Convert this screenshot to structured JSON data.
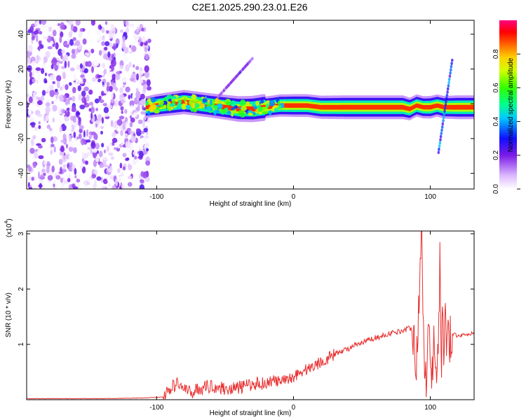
{
  "figure": {
    "title": "C2E1.2025.290.23.01.E26"
  },
  "chart_data": [
    {
      "type": "heatmap",
      "xlabel": "Height of straight line (km)",
      "ylabel": "Frequency (Hz)",
      "xlim": [
        -195,
        132
      ],
      "ylim": [
        -49,
        48
      ],
      "x_ticks": [
        -100,
        0,
        100
      ],
      "x_tick_labels": [
        "-100",
        "0",
        "100"
      ],
      "y_ticks": [
        -40,
        -20,
        0,
        20,
        40
      ],
      "y_tick_labels": [
        "-40",
        "-20",
        "0",
        "20",
        "40"
      ],
      "colorbar": {
        "label": "Normalized spectral amplitude",
        "range": [
          0,
          1
        ],
        "ticks": [
          0,
          0.2,
          0.4,
          0.6,
          0.8
        ],
        "tick_labels": [
          "0.0",
          "0.2",
          "0.4",
          "0.6",
          "0.8"
        ]
      },
      "ridge": {
        "x": [
          -108,
          -100,
          -90,
          -80,
          -70,
          -60,
          -50,
          -40,
          -30,
          -20,
          -10,
          0,
          10,
          20,
          40,
          60,
          80,
          85,
          90,
          95,
          100,
          105,
          110,
          120,
          132
        ],
        "y": [
          -2,
          -1,
          0,
          1,
          0,
          -1,
          -2,
          -3,
          -3,
          -2,
          -1,
          -1,
          -1,
          -2,
          -2,
          -2,
          -2,
          -3,
          -1,
          -2,
          -2,
          -1,
          -2,
          -2,
          -2
        ],
        "amplitude": [
          0.35,
          0.45,
          0.5,
          0.55,
          0.55,
          0.55,
          0.6,
          0.65,
          0.7,
          0.75,
          0.8,
          0.85,
          0.85,
          0.9,
          0.95,
          0.95,
          0.95,
          0.85,
          0.8,
          0.8,
          0.85,
          0.8,
          0.85,
          0.95,
          0.95
        ]
      },
      "features": [
        {
          "x": [
            -55,
            -30
          ],
          "y": [
            4,
            26
          ],
          "amplitude": 0.2
        },
        {
          "x": [
            106,
            116
          ],
          "y": [
            -28,
            25
          ],
          "amplitude": 0.35
        }
      ],
      "noise_region": {
        "x": [
          -195,
          -105
        ],
        "y": [
          -49,
          48
        ],
        "amplitude_max": 0.25
      }
    },
    {
      "type": "line",
      "xlabel": "Height of straight line (km)",
      "ylabel": "SNR (10 * v/v)",
      "multiplier_label": "(x10",
      "multiplier_exponent": "4",
      "xlim": [
        -195,
        132
      ],
      "ylim": [
        0,
        3.05
      ],
      "x_ticks": [
        -100,
        0,
        100
      ],
      "x_tick_labels": [
        "-100",
        "0",
        "100"
      ],
      "y_ticks": [
        1,
        2,
        3
      ],
      "y_tick_labels": [
        "1",
        "2",
        "3"
      ],
      "line_color": "#e83030",
      "series": [
        {
          "x": [
            -195,
            -170,
            -140,
            -110,
            -95,
            -90,
            -85,
            -80,
            -75,
            -70,
            -65,
            -60,
            -55,
            -50,
            -45,
            -40,
            -35,
            -30,
            -25,
            -20,
            -15,
            -10,
            -5,
            0,
            5,
            10,
            15,
            20,
            25,
            30,
            35,
            40,
            45,
            50,
            55,
            60,
            65,
            70,
            75,
            80,
            85,
            88,
            90,
            92,
            93,
            94,
            95,
            97,
            99,
            101,
            103,
            105,
            107,
            108,
            109,
            110,
            111,
            112,
            113,
            114,
            116,
            120,
            125,
            132
          ],
          "y": [
            0.02,
            0.02,
            0.02,
            0.03,
            0.05,
            0.2,
            0.3,
            0.2,
            0.12,
            0.2,
            0.22,
            0.25,
            0.22,
            0.2,
            0.2,
            0.22,
            0.25,
            0.28,
            0.3,
            0.3,
            0.35,
            0.32,
            0.35,
            0.42,
            0.5,
            0.55,
            0.62,
            0.68,
            0.75,
            0.82,
            0.88,
            0.92,
            0.98,
            1.02,
            1.08,
            1.12,
            1.15,
            1.2,
            1.22,
            1.25,
            1.3,
            1.25,
            0.6,
            1.8,
            2.8,
            3.05,
            1.1,
            0.35,
            1.7,
            0.3,
            1.2,
            0.2,
            2.5,
            0.15,
            1.9,
            0.35,
            2.0,
            0.6,
            1.7,
            1.1,
            1.2,
            1.15,
            1.18,
            1.2
          ]
        }
      ]
    }
  ]
}
